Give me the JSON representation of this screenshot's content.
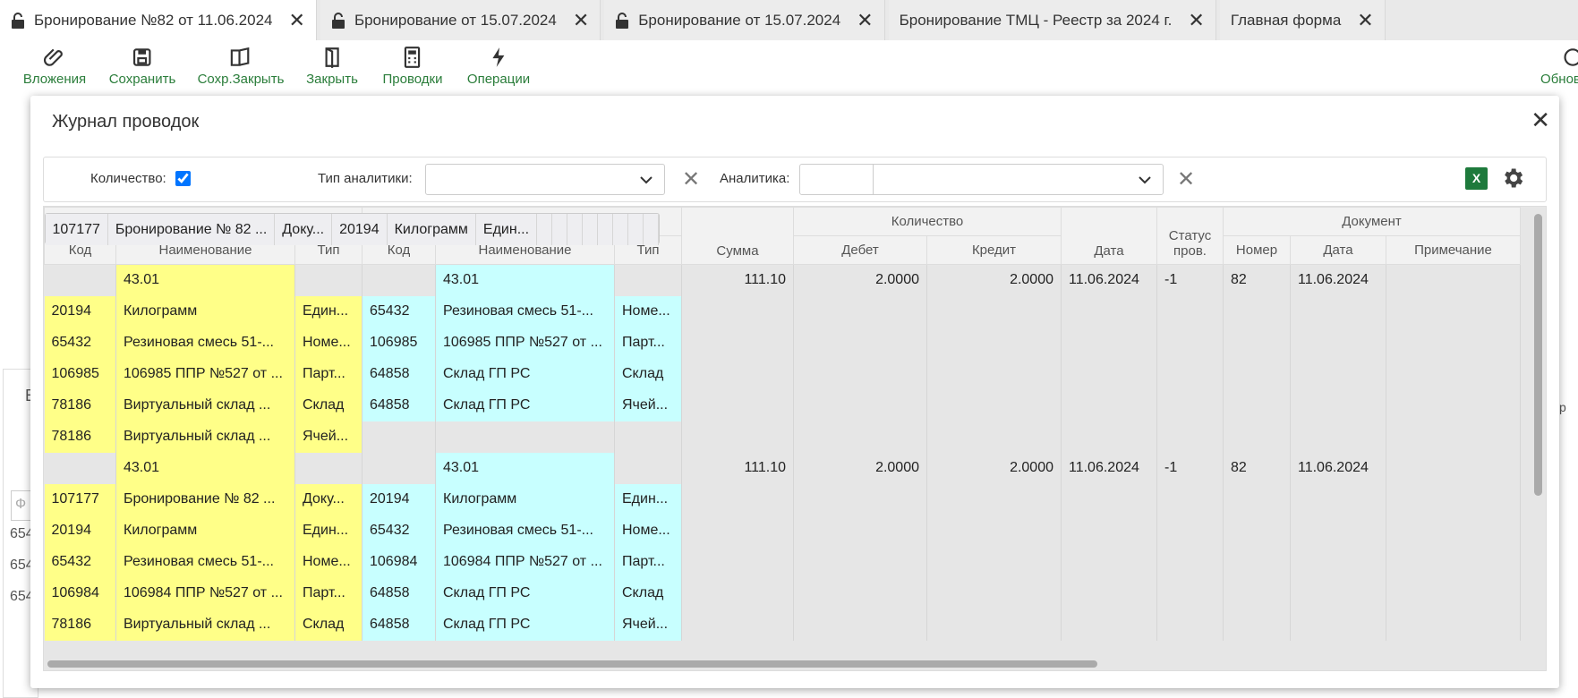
{
  "tabs": [
    "Бронирование №82 от 11.06.2024",
    "Бронирование от 15.07.2024",
    "Бронирование от 15.07.2024",
    "Бронирование ТМЦ - Реестр за 2024 г.",
    "Главная форма"
  ],
  "toolbar": [
    "Вложения",
    "Сохранить",
    "Сохр.Закрыть",
    "Закрыть",
    "Проводки",
    "Операции",
    "Обновить"
  ],
  "background": {
    "left_heading": "В",
    "filter_placeholder": "Ф",
    "codes": [
      "654",
      "654",
      "654"
    ],
    "right_fragment": "р"
  },
  "dialog": {
    "title": "Журнал проводок",
    "filters": {
      "quantity_label": "Количество:",
      "analytics_type_label": "Тип аналитики:",
      "analytics_label": "Аналитика:",
      "excel": "X"
    },
    "table": {
      "groups": {
        "debit": "Дебет",
        "credit": "Кредит",
        "quantity": "Количество",
        "document": "Документ"
      },
      "columns": [
        "Код",
        "Наименование",
        "Тип",
        "Код",
        "Наименование",
        "Тип",
        "Сумма",
        "Дебет",
        "Кредит",
        "Дата",
        "Статус пров.",
        "Номер",
        "Дата",
        "Примечание"
      ],
      "rows": [
        [
          null,
          "43.01",
          null,
          null,
          "43.01",
          null,
          "111.10",
          "2.0000",
          "2.0000",
          "11.06.2024",
          "-1",
          "82",
          "11.06.2024",
          null
        ],
        [
          "107177",
          "Бронирование № 82 ...",
          "Доку...",
          "20194",
          "Килограмм",
          "Един...",
          null,
          null,
          null,
          null,
          null,
          null,
          null,
          null
        ],
        [
          "20194",
          "Килограмм",
          "Един...",
          "65432",
          "Резиновая смесь 51-...",
          "Номе...",
          null,
          null,
          null,
          null,
          null,
          null,
          null,
          null
        ],
        [
          "65432",
          "Резиновая смесь 51-...",
          "Номе...",
          "106985",
          "106985 ППР №527 от ...",
          "Парт...",
          null,
          null,
          null,
          null,
          null,
          null,
          null,
          null
        ],
        [
          "106985",
          "106985 ППР №527 от ...",
          "Парт...",
          "64858",
          "Склад ГП РС",
          "Склад",
          null,
          null,
          null,
          null,
          null,
          null,
          null,
          null
        ],
        [
          "78186",
          "Виртуальный склад ...",
          "Склад",
          "64858",
          "Склад ГП РС",
          "Ячей...",
          null,
          null,
          null,
          null,
          null,
          null,
          null,
          null
        ],
        [
          "78186",
          "Виртуальный склад ...",
          "Ячей...",
          null,
          null,
          null,
          null,
          null,
          null,
          null,
          null,
          null,
          null,
          null
        ],
        [
          null,
          "43.01",
          null,
          null,
          "43.01",
          null,
          "111.10",
          "2.0000",
          "2.0000",
          "11.06.2024",
          "-1",
          "82",
          "11.06.2024",
          null
        ],
        [
          "107177",
          "Бронирование № 82 ...",
          "Доку...",
          "20194",
          "Килограмм",
          "Един...",
          null,
          null,
          null,
          null,
          null,
          null,
          null,
          null
        ],
        [
          "20194",
          "Килограмм",
          "Един...",
          "65432",
          "Резиновая смесь 51-...",
          "Номе...",
          null,
          null,
          null,
          null,
          null,
          null,
          null,
          null
        ],
        [
          "65432",
          "Резиновая смесь 51-...",
          "Номе...",
          "106984",
          "106984 ППР №527 от ...",
          "Парт...",
          null,
          null,
          null,
          null,
          null,
          null,
          null,
          null
        ],
        [
          "106984",
          "106984 ППР №527 от ...",
          "Парт...",
          "64858",
          "Склад ГП РС",
          "Склад",
          null,
          null,
          null,
          null,
          null,
          null,
          null,
          null
        ],
        [
          "78186",
          "Виртуальный склад ...",
          "Склад",
          "64858",
          "Склад ГП РС",
          "Ячей...",
          null,
          null,
          null,
          null,
          null,
          null,
          null,
          null
        ]
      ]
    }
  }
}
